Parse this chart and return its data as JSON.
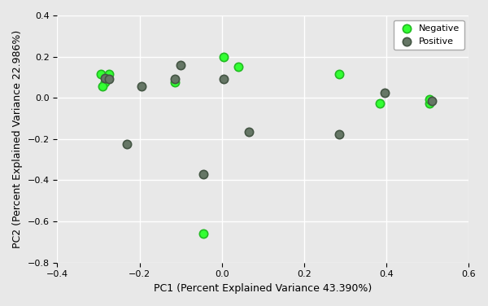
{
  "negative_x": [
    -0.295,
    -0.285,
    -0.275,
    -0.29,
    -0.115,
    0.005,
    0.04,
    0.285,
    0.385,
    0.505,
    0.505
  ],
  "negative_y": [
    0.115,
    0.075,
    0.115,
    0.055,
    0.075,
    0.2,
    0.15,
    0.115,
    -0.025,
    -0.025,
    -0.005
  ],
  "positive_x": [
    -0.285,
    -0.275,
    -0.23,
    -0.195,
    -0.1,
    -0.115,
    -0.045,
    0.005,
    0.065,
    0.285,
    0.395,
    0.51
  ],
  "positive_y": [
    0.095,
    0.09,
    -0.225,
    0.055,
    0.16,
    0.09,
    -0.37,
    0.09,
    -0.165,
    -0.175,
    0.025,
    -0.015
  ],
  "negative_green_x": [
    -0.045
  ],
  "negative_green_y": [
    -0.66
  ],
  "negative_color": "#33ff33",
  "positive_color": "#667766",
  "negative_edge": "#22bb22",
  "positive_edge": "#445544",
  "xlabel": "PC1 (Percent Explained Variance 43.390%)",
  "ylabel": "PC2 (Percent Explained Variance 22.986%)",
  "xlim": [
    -0.4,
    0.6
  ],
  "ylim": [
    -0.8,
    0.4
  ],
  "xticks": [
    -0.4,
    -0.2,
    0.0,
    0.2,
    0.4,
    0.6
  ],
  "yticks": [
    -0.8,
    -0.6,
    -0.4,
    -0.2,
    0.0,
    0.2,
    0.4
  ],
  "bg_color": "#e8e8e8",
  "grid_color": "#ffffff",
  "marker_size": 55,
  "marker_lw": 1.2,
  "neg_label": "Negative",
  "pos_label": "Positive"
}
